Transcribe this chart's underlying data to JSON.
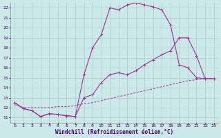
{
  "xlabel": "Windchill (Refroidissement éolien,°C)",
  "bg_color": "#cce8e8",
  "grid_color": "#aacccc",
  "line_color": "#993399",
  "xlim": [
    0,
    23
  ],
  "ylim": [
    11,
    22
  ],
  "xticks": [
    0,
    1,
    2,
    3,
    4,
    5,
    6,
    7,
    8,
    9,
    10,
    11,
    12,
    13,
    14,
    15,
    16,
    17,
    18,
    19,
    20,
    21,
    22,
    23
  ],
  "yticks": [
    11,
    12,
    13,
    14,
    15,
    16,
    17,
    18,
    19,
    20,
    21,
    22
  ],
  "line1_x": [
    0,
    1,
    2,
    3,
    4,
    5,
    6,
    7,
    8,
    9,
    10,
    11,
    12,
    13,
    14,
    15,
    16,
    17,
    18,
    19,
    20,
    21,
    22,
    23
  ],
  "line1_y": [
    12.5,
    11.9,
    11.7,
    11.1,
    11.4,
    11.3,
    11.2,
    11.1,
    15.3,
    18.0,
    19.3,
    22.0,
    21.8,
    22.3,
    22.5,
    22.3,
    22.1,
    21.8,
    20.3,
    16.3,
    16.0,
    15.0,
    14.9,
    14.9
  ],
  "line2_x": [
    0,
    1,
    2,
    3,
    4,
    5,
    6,
    7,
    8,
    9,
    10,
    11,
    12,
    13,
    14,
    15,
    16,
    17,
    18,
    19,
    20,
    21,
    22,
    23
  ],
  "line2_y": [
    12.5,
    11.9,
    11.7,
    11.1,
    11.4,
    11.3,
    11.2,
    11.1,
    13.0,
    13.3,
    14.5,
    15.3,
    15.5,
    15.3,
    15.7,
    16.3,
    16.8,
    17.3,
    17.7,
    19.0,
    19.0,
    17.2,
    14.9,
    14.9
  ],
  "line3_x": [
    0,
    1,
    2,
    3,
    4,
    5,
    6,
    7,
    8,
    9,
    10,
    11,
    12,
    13,
    14,
    15,
    16,
    17,
    18,
    19,
    20,
    21,
    22,
    23
  ],
  "line3_y": [
    12.3,
    12.0,
    12.0,
    12.0,
    12.0,
    12.1,
    12.1,
    12.2,
    12.4,
    12.5,
    12.7,
    12.9,
    13.1,
    13.3,
    13.5,
    13.7,
    13.9,
    14.1,
    14.3,
    14.5,
    14.7,
    14.8,
    14.9,
    14.9
  ]
}
